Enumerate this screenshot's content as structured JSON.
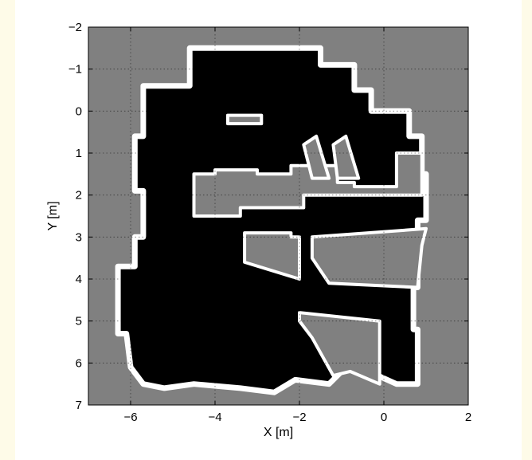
{
  "chart_data": {
    "type": "heatmap",
    "title": "",
    "xlabel": "X [m]",
    "ylabel": "Y [m]",
    "xlim": [
      -7,
      2
    ],
    "ylim": [
      -2,
      7
    ],
    "y_axis_inverted": true,
    "grid": true,
    "grid_style": "dotted",
    "xticks": [
      -6,
      -4,
      -2,
      0,
      2
    ],
    "yticks": [
      -2,
      -1,
      0,
      1,
      2,
      3,
      4,
      5,
      6,
      7
    ],
    "xtick_labels": [
      "−6",
      "−4",
      "−2",
      "0",
      "2"
    ],
    "ytick_labels": [
      "−2",
      "−1",
      "0",
      "1",
      "2",
      "3",
      "4",
      "5",
      "6",
      "7"
    ],
    "colormap": {
      "unknown": "#808080",
      "free": "#000000",
      "occupied": "#ffffff"
    },
    "free_region_outline": [
      [
        -5.7,
        0.1
      ],
      [
        -5.7,
        -0.6
      ],
      [
        -4.6,
        -0.6
      ],
      [
        -4.6,
        -1.5
      ],
      [
        -1.5,
        -1.5
      ],
      [
        -1.5,
        -1.1
      ],
      [
        -0.7,
        -1.1
      ],
      [
        -0.7,
        -0.5
      ],
      [
        -0.3,
        -0.5
      ],
      [
        -0.3,
        0.0
      ],
      [
        0.6,
        0.0
      ],
      [
        0.6,
        0.6
      ],
      [
        0.9,
        0.6
      ],
      [
        0.9,
        1.5
      ],
      [
        1.0,
        1.5
      ],
      [
        1.0,
        2.6
      ],
      [
        0.8,
        2.6
      ],
      [
        0.8,
        4.2
      ],
      [
        0.7,
        4.2
      ],
      [
        0.7,
        5.2
      ],
      [
        0.8,
        5.2
      ],
      [
        0.8,
        6.5
      ],
      [
        0.3,
        6.5
      ],
      [
        -0.8,
        6.0
      ],
      [
        -1.3,
        6.5
      ],
      [
        -2.1,
        6.4
      ],
      [
        -2.6,
        6.7
      ],
      [
        -3.4,
        6.6
      ],
      [
        -4.5,
        6.5
      ],
      [
        -5.2,
        6.6
      ],
      [
        -5.7,
        6.5
      ],
      [
        -6.0,
        6.1
      ],
      [
        -6.1,
        5.3
      ],
      [
        -6.3,
        5.3
      ],
      [
        -6.3,
        3.7
      ],
      [
        -5.9,
        3.7
      ],
      [
        -5.9,
        3.0
      ],
      [
        -5.7,
        3.0
      ],
      [
        -5.7,
        1.9
      ],
      [
        -5.9,
        1.9
      ],
      [
        -5.9,
        0.6
      ],
      [
        -5.7,
        0.6
      ]
    ],
    "unknown_cutouts": [
      [
        [
          -3.7,
          1.4
        ],
        [
          -3.0,
          1.4
        ],
        [
          -3.0,
          1.5
        ],
        [
          -2.2,
          1.5
        ],
        [
          -2.2,
          1.3
        ],
        [
          -2.0,
          1.3
        ],
        [
          -1.1,
          1.3
        ],
        [
          -1.1,
          1.7
        ],
        [
          -0.7,
          1.7
        ],
        [
          -0.7,
          1.8
        ],
        [
          0.3,
          1.8
        ],
        [
          0.3,
          1.0
        ],
        [
          0.9,
          1.0
        ],
        [
          0.9,
          2.0
        ],
        [
          -1.9,
          2.0
        ],
        [
          -1.9,
          2.3
        ],
        [
          -3.4,
          2.3
        ],
        [
          -3.4,
          2.5
        ],
        [
          -4.5,
          2.5
        ],
        [
          -4.5,
          1.5
        ],
        [
          -4.0,
          1.5
        ],
        [
          -4.0,
          1.4
        ]
      ],
      [
        [
          -3.7,
          0.1
        ],
        [
          -2.9,
          0.1
        ],
        [
          -2.9,
          0.3
        ],
        [
          -3.7,
          0.3
        ]
      ],
      [
        [
          -3.3,
          2.9
        ],
        [
          -2.2,
          2.9
        ],
        [
          -2.2,
          3.0
        ],
        [
          -2.0,
          3.0
        ],
        [
          -2.0,
          4.0
        ],
        [
          -3.3,
          3.6
        ]
      ],
      [
        [
          -1.7,
          3.0
        ],
        [
          1.0,
          2.8
        ],
        [
          0.9,
          3.2
        ],
        [
          0.8,
          4.2
        ],
        [
          -1.3,
          4.1
        ],
        [
          -1.7,
          3.5
        ]
      ],
      [
        [
          -2.0,
          4.8
        ],
        [
          -0.1,
          5.0
        ],
        [
          -0.1,
          6.5
        ],
        [
          -0.8,
          6.2
        ],
        [
          -1.2,
          6.3
        ],
        [
          -1.7,
          5.4
        ],
        [
          -2.0,
          5.0
        ]
      ],
      [
        [
          -1.9,
          0.8
        ],
        [
          -1.6,
          0.6
        ],
        [
          -1.3,
          1.6
        ],
        [
          -1.7,
          1.6
        ]
      ],
      [
        [
          -1.2,
          0.8
        ],
        [
          -0.9,
          0.6
        ],
        [
          -0.6,
          1.6
        ],
        [
          -1.1,
          1.6
        ]
      ]
    ]
  }
}
